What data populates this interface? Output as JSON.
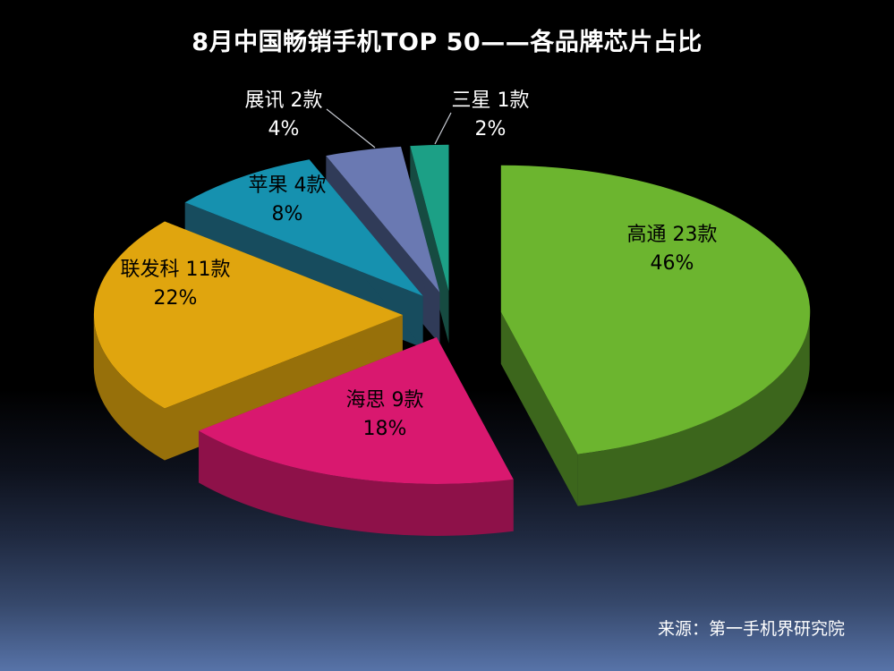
{
  "title": "8月中国畅销手机TOP 50——各品牌芯片占比",
  "source": "来源：第一手机界研究院",
  "background": {
    "top_color": "#000000",
    "bottom_color": "#5773A8"
  },
  "chart_data": {
    "type": "pie",
    "style": "3d-exploded",
    "title": "8月中国畅销手机TOP 50——各品牌芯片占比",
    "start_angle_deg": 0,
    "direction": "clockwise",
    "legend_position": "none",
    "slices": [
      {
        "name": "高通",
        "models": 23,
        "percent": 46,
        "label_line1": "高通 23款",
        "label_line2": "46%",
        "color": "#6CB52F",
        "side_color": "#3C661C",
        "label_text_color": "#000000"
      },
      {
        "name": "海思",
        "models": 9,
        "percent": 18,
        "label_line1": "海思 9款",
        "label_line2": "18%",
        "color": "#D9186F",
        "side_color": "#8E1149",
        "label_text_color": "#000000"
      },
      {
        "name": "联发科",
        "models": 11,
        "percent": 22,
        "label_line1": "联发科 11款",
        "label_line2": "22%",
        "color": "#E0A50E",
        "side_color": "#97700A",
        "label_text_color": "#000000"
      },
      {
        "name": "苹果",
        "models": 4,
        "percent": 8,
        "label_line1": "苹果 4款",
        "label_line2": "8%",
        "color": "#1691AF",
        "side_color": "#174C5E",
        "label_text_color": "#000000"
      },
      {
        "name": "展讯",
        "models": 2,
        "percent": 4,
        "label_line1": "展讯 2款",
        "label_line2": "4%",
        "color": "#6A79B2",
        "side_color": "#303B58",
        "label_text_color": "#FFFFFF"
      },
      {
        "name": "三星",
        "models": 1,
        "percent": 2,
        "label_line1": "三星 1款",
        "label_line2": "2%",
        "color": "#1CA086",
        "side_color": "#164B41",
        "label_text_color": "#FFFFFF"
      }
    ]
  }
}
